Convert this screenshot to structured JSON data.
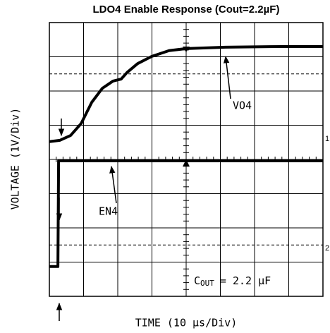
{
  "chart_data": {
    "type": "line",
    "title": "LDO4 Enable Response (Cout=2.2µF)",
    "y_label": "VOLTAGE (1V/Div)",
    "x_label": "TIME (10 µs/Div)",
    "xlim": [
      0,
      80
    ],
    "ylim": [
      0,
      8
    ],
    "xticks": [
      0,
      10,
      20,
      30,
      40,
      50,
      60,
      70,
      80
    ],
    "yticks": [
      0,
      1,
      2,
      3,
      4,
      5,
      6,
      7,
      8
    ],
    "grid": true,
    "reference_lines": [
      6.5,
      1.5
    ],
    "channel_markers": [
      "1",
      "2"
    ],
    "annotation_cout": {
      "symbol": "C",
      "subscript": "OUT",
      "text": "= 2.2 µF"
    },
    "series": [
      {
        "name": "VO4",
        "color": "#000000",
        "x": [
          0,
          3.1,
          6.2,
          9.3,
          12.4,
          15.5,
          18.6,
          21,
          22.7,
          25.8,
          29.9,
          35,
          40,
          51.5,
          68,
          80
        ],
        "values": [
          4.52,
          4.56,
          4.7,
          5.05,
          5.67,
          6.08,
          6.29,
          6.35,
          6.54,
          6.8,
          7.01,
          7.18,
          7.24,
          7.28,
          7.3,
          7.3
        ]
      },
      {
        "name": "EN4",
        "color": "#000000",
        "x": [
          0,
          2.5,
          2.7,
          80
        ],
        "values": [
          0.87,
          0.87,
          3.96,
          3.96
        ]
      }
    ]
  }
}
